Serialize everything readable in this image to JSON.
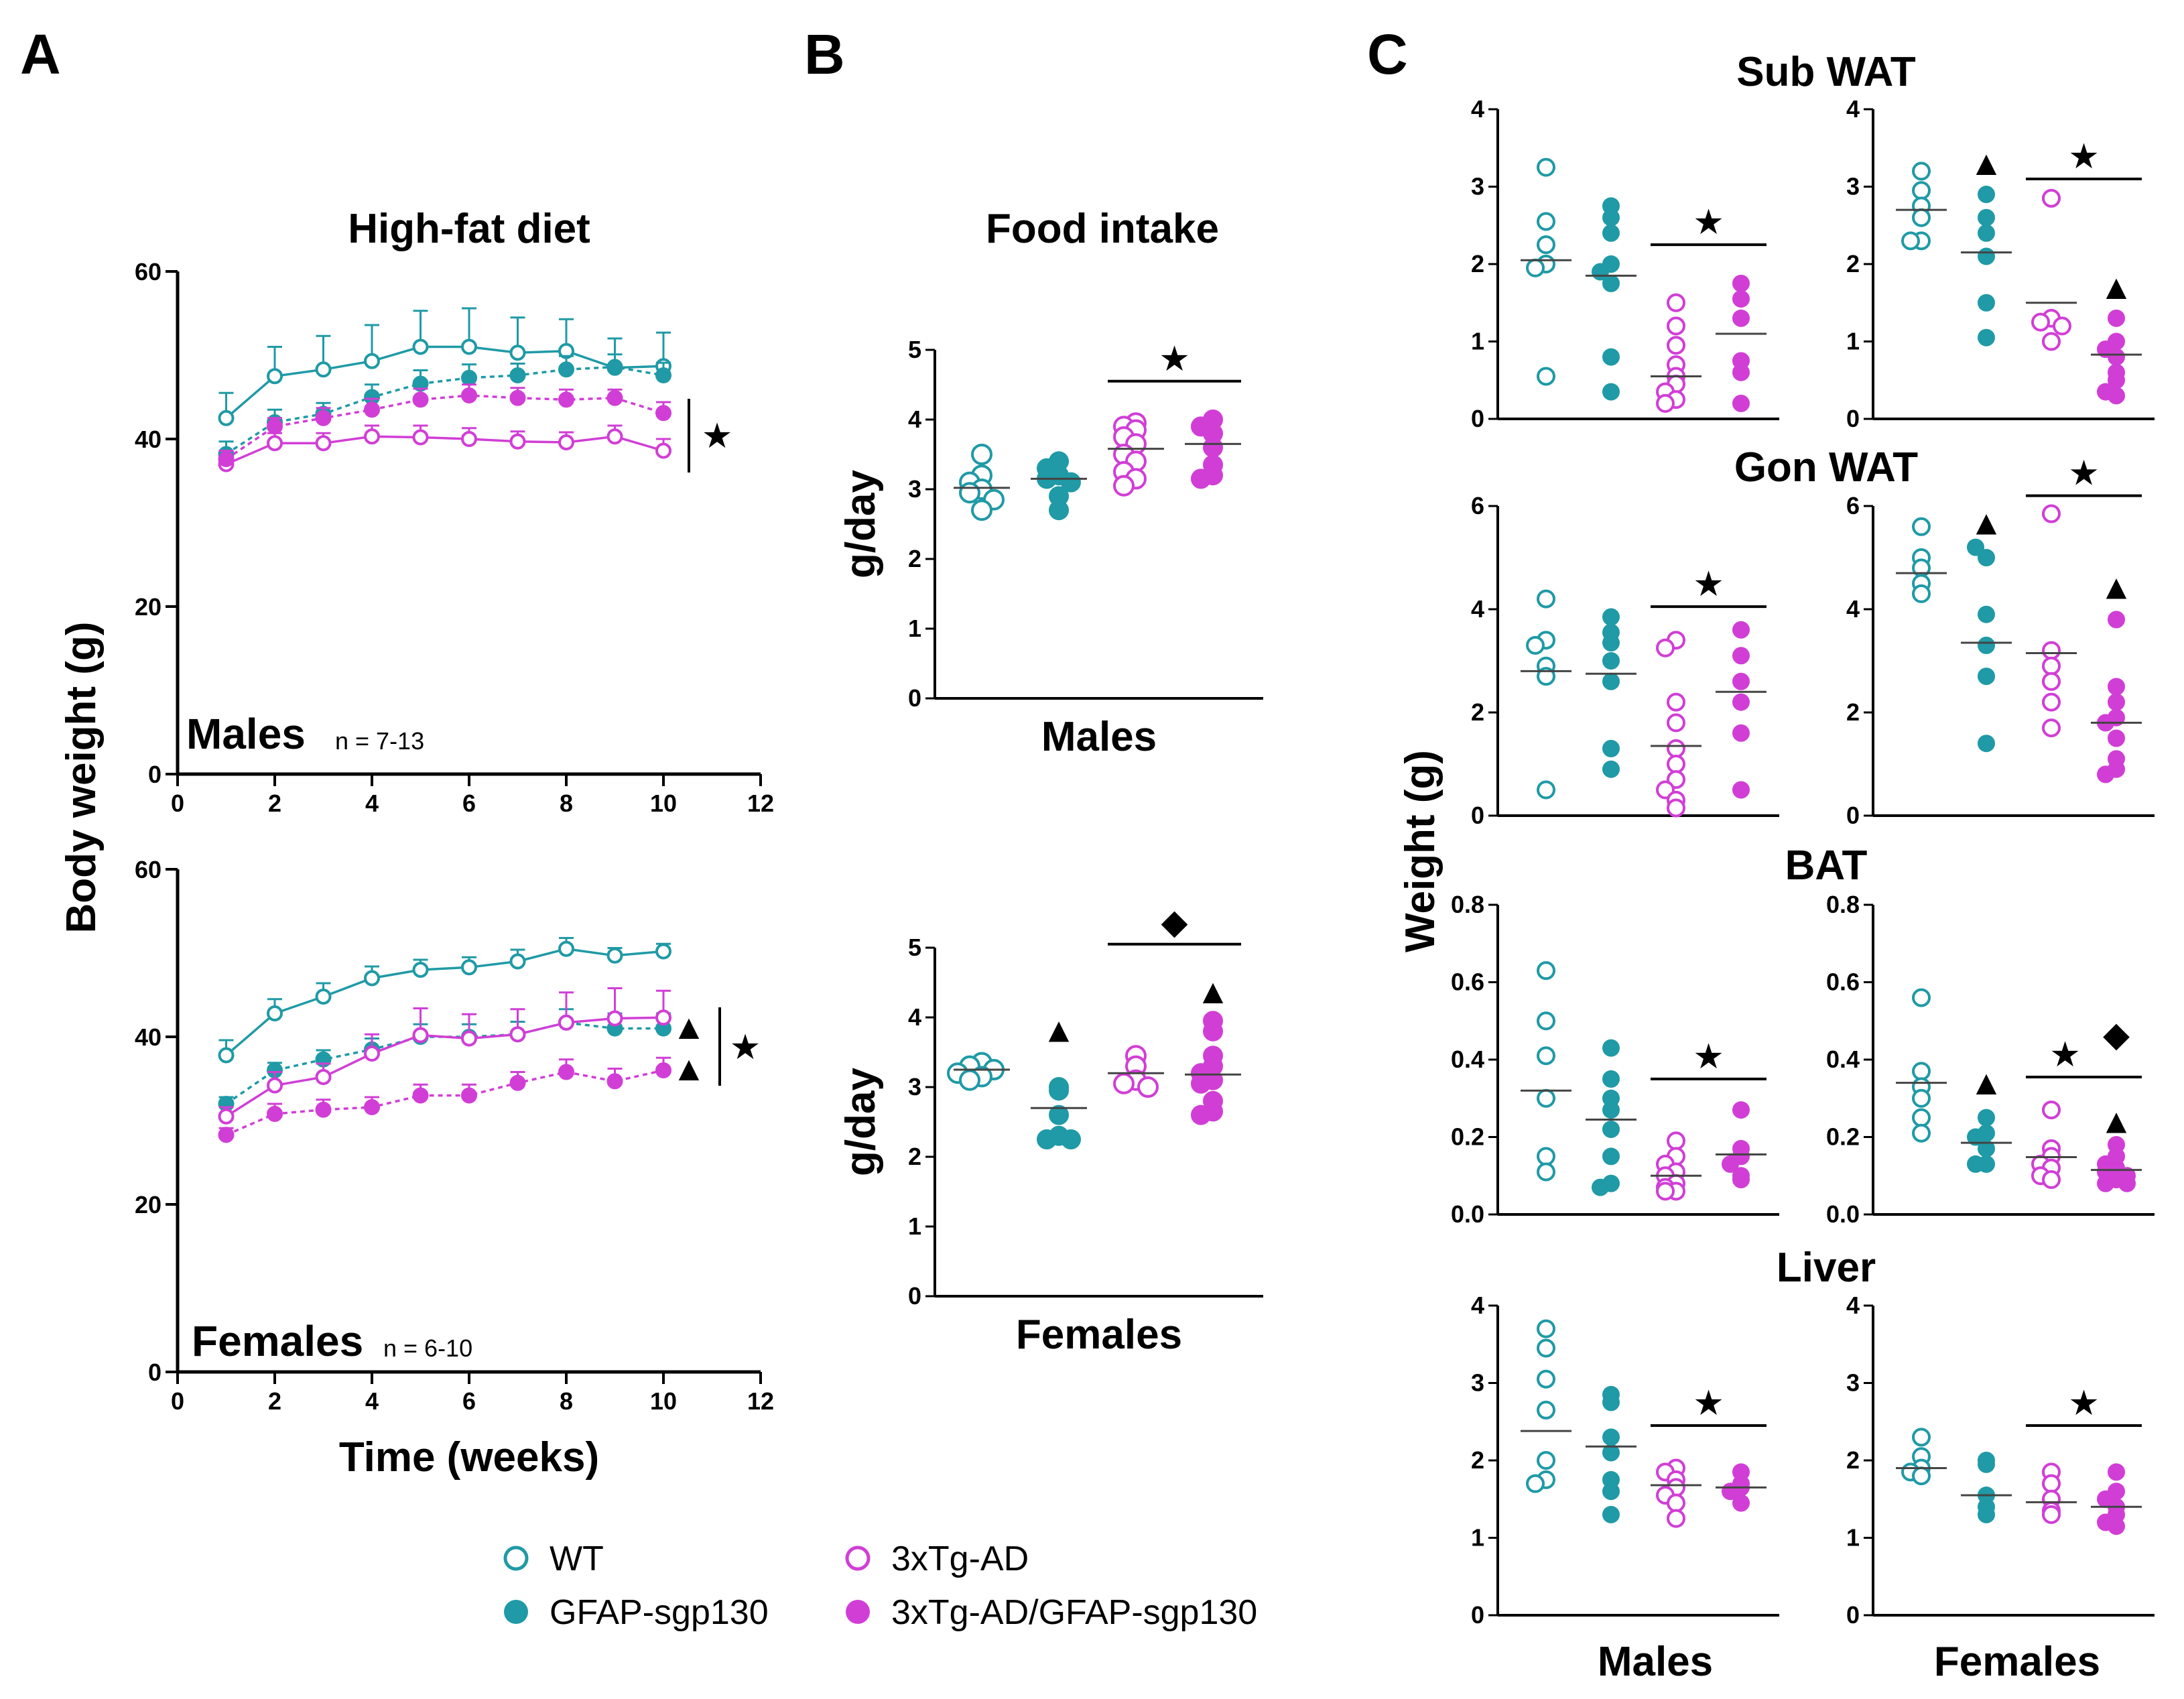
{
  "colors": {
    "teal": "#1f9aa6",
    "magenta": "#d13ed6",
    "black": "#000000"
  },
  "panel_letters": {
    "a": "A",
    "b": "B",
    "c": "C"
  },
  "legend": [
    {
      "label": "WT",
      "color": "#1f9aa6",
      "filled": false
    },
    {
      "label": "GFAP-sgp130",
      "color": "#1f9aa6",
      "filled": true
    },
    {
      "label": "3xTg-AD",
      "color": "#d13ed6",
      "filled": false
    },
    {
      "label": "3xTg-AD/GFAP-sgp130",
      "color": "#d13ed6",
      "filled": true
    }
  ],
  "chart_data": [
    {
      "id": "A-males",
      "type": "line",
      "title": "High-fat diet",
      "panel_label": "Males",
      "n_label": "n = 7-13",
      "xlabel": "Time (weeks)",
      "ylabel": "Body weight (g)",
      "xlim": [
        0,
        12
      ],
      "ylim": [
        0,
        60
      ],
      "xticks": [
        0,
        2,
        4,
        6,
        8,
        10,
        12
      ],
      "yticks": [
        0,
        20,
        40,
        60
      ],
      "x": [
        1,
        2,
        3,
        4,
        5,
        6,
        7,
        8,
        9,
        10
      ],
      "series": [
        {
          "name": "WT",
          "values": [
            42.5,
            47.5,
            48.3,
            49.3,
            51,
            51,
            50.3,
            50.5,
            48.5,
            48.7
          ],
          "err": [
            3,
            3.5,
            4,
            4.3,
            4.3,
            4.6,
            4.2,
            3.8,
            3.5,
            4
          ]
        },
        {
          "name": "GFAP-sgp130",
          "values": [
            38.2,
            42,
            43,
            45,
            46.6,
            47.3,
            47.6,
            48.3,
            48.6,
            47.6
          ],
          "err": [
            1.5,
            1.5,
            1.3,
            1.5,
            1.6,
            1.6,
            1.4,
            1.6,
            1.5,
            1.5
          ]
        },
        {
          "name": "3xTg-AD",
          "values": [
            37,
            39.5,
            39.5,
            40.3,
            40.2,
            40,
            39.7,
            39.6,
            40.3,
            38.6
          ],
          "err": [
            1,
            1.2,
            1.2,
            1.3,
            1.4,
            1.3,
            1.2,
            1.2,
            1.3,
            1.4
          ]
        },
        {
          "name": "3xTg-AD/GFAP-sgp130",
          "values": [
            37.6,
            41.5,
            42.5,
            43.5,
            44.7,
            45.2,
            44.9,
            44.7,
            44.9,
            43.1
          ],
          "err": [
            1,
            1,
            1.2,
            1.3,
            1.3,
            1.3,
            1.2,
            1.2,
            1,
            1.3
          ]
        }
      ],
      "markers": [
        "★"
      ]
    },
    {
      "id": "A-females",
      "type": "line",
      "title": "",
      "panel_label": "Females",
      "n_label": "n = 6-10",
      "xlabel": "Time (weeks)",
      "ylabel": "Body weight (g)",
      "xlim": [
        0,
        12
      ],
      "ylim": [
        0,
        60
      ],
      "xticks": [
        0,
        2,
        4,
        6,
        8,
        10,
        12
      ],
      "yticks": [
        0,
        20,
        40,
        60
      ],
      "x": [
        1,
        2,
        3,
        4,
        5,
        6,
        7,
        8,
        9,
        10
      ],
      "series": [
        {
          "name": "WT",
          "values": [
            37.8,
            42.8,
            44.8,
            47,
            48,
            48.3,
            49,
            50.5,
            49.7,
            50.2
          ],
          "err": [
            1.8,
            1.7,
            1.6,
            1.4,
            1.2,
            1.2,
            1.4,
            1.3,
            0.9,
            0.9
          ]
        },
        {
          "name": "GFAP-sgp130",
          "values": [
            32,
            36,
            37.3,
            38.5,
            40,
            40,
            40.3,
            41.7,
            41,
            41
          ],
          "err": [
            0.8,
            0.9,
            1.1,
            1.3,
            1.5,
            1.5,
            1.5,
            1.6,
            1.8,
            1.8
          ]
        },
        {
          "name": "3xTg-AD",
          "values": [
            30.5,
            34.2,
            35.2,
            38,
            40.2,
            39.8,
            40.3,
            41.7,
            42.2,
            42.3
          ],
          "err": [
            1.1,
            1.6,
            1.6,
            2.3,
            3.2,
            2.9,
            3,
            3.6,
            3.6,
            3.2
          ]
        },
        {
          "name": "3xTg-AD/GFAP-sgp130",
          "values": [
            28.3,
            30.8,
            31.3,
            31.6,
            33,
            33,
            34.5,
            35.8,
            34.7,
            36
          ],
          "err": [
            0.8,
            1.2,
            1.2,
            1.2,
            1.3,
            1.3,
            1.3,
            1.5,
            1.5,
            1.5
          ]
        }
      ],
      "markers": [
        "▲",
        "▲",
        "★"
      ]
    },
    {
      "id": "B-males",
      "type": "scatter",
      "title": "Food intake",
      "xlabel": "Males",
      "ylabel": "g/day",
      "ylim": [
        0,
        5
      ],
      "yticks": [
        0,
        1,
        2,
        3,
        4,
        5
      ],
      "groups": [
        {
          "name": "WT",
          "values": [
            3.5,
            3.2,
            3.1,
            3.0,
            2.95,
            2.85,
            2.7
          ],
          "mean": 3.02
        },
        {
          "name": "GFAP-sgp130",
          "values": [
            3.4,
            3.3,
            3.2,
            3.15,
            3.1,
            2.9,
            2.7
          ],
          "mean": 3.15
        },
        {
          "name": "3xTg-AD",
          "values": [
            3.95,
            3.9,
            3.85,
            3.75,
            3.65,
            3.5,
            3.4,
            3.25,
            3.15,
            3.05
          ],
          "mean": 3.58
        },
        {
          "name": "3xTg-AD/GFAP-sgp130",
          "values": [
            4.0,
            3.9,
            3.8,
            3.6,
            3.35,
            3.2,
            3.15
          ],
          "mean": 3.65
        }
      ],
      "markers": [
        "★"
      ]
    },
    {
      "id": "B-females",
      "type": "scatter",
      "title": "",
      "xlabel": "Females",
      "ylabel": "g/day",
      "ylim": [
        0,
        5
      ],
      "yticks": [
        0,
        1,
        2,
        3,
        4,
        5
      ],
      "groups": [
        {
          "name": "WT",
          "values": [
            3.35,
            3.3,
            3.25,
            3.2,
            3.15,
            3.1
          ],
          "mean": 3.25
        },
        {
          "name": "GFAP-sgp130",
          "values": [
            3.0,
            2.95,
            2.6,
            2.3,
            2.25,
            2.25
          ],
          "mean": 2.7
        },
        {
          "name": "3xTg-AD",
          "values": [
            3.45,
            3.3,
            3.1,
            3.05,
            3.0
          ],
          "mean": 3.2
        },
        {
          "name": "3xTg-AD/GFAP-sgp130",
          "values": [
            3.95,
            3.8,
            3.45,
            3.3,
            3.2,
            3.1,
            3.05,
            2.8,
            2.65,
            2.6
          ],
          "mean": 3.18
        }
      ],
      "markers": [
        "▲",
        "◆",
        "▲"
      ]
    },
    {
      "id": "C-subwat-males",
      "type": "scatter",
      "title": "Sub WAT",
      "xlabel": "Males",
      "ylabel": "Weight (g)",
      "ylim": [
        0,
        4
      ],
      "yticks": [
        0,
        1,
        2,
        3,
        4
      ],
      "groups": [
        {
          "name": "WT",
          "values": [
            3.25,
            2.55,
            2.25,
            2.0,
            1.95,
            0.55
          ],
          "mean": 2.05
        },
        {
          "name": "GFAP-sgp130",
          "values": [
            2.75,
            2.6,
            2.4,
            2.0,
            1.9,
            1.75,
            0.8,
            0.35
          ],
          "mean": 1.85
        },
        {
          "name": "3xTg-AD",
          "values": [
            1.5,
            1.2,
            0.95,
            0.7,
            0.55,
            0.45,
            0.35,
            0.25,
            0.2
          ],
          "mean": 0.55
        },
        {
          "name": "3xTg-AD/GFAP-sgp130",
          "values": [
            1.75,
            1.55,
            1.3,
            0.75,
            0.6,
            0.2
          ],
          "mean": 1.1
        }
      ],
      "markers": [
        "★"
      ]
    },
    {
      "id": "C-subwat-females",
      "type": "scatter",
      "title": "",
      "xlabel": "Females",
      "ylabel": "",
      "ylim": [
        0,
        4
      ],
      "yticks": [
        0,
        1,
        2,
        3,
        4
      ],
      "groups": [
        {
          "name": "WT",
          "values": [
            3.2,
            2.95,
            2.75,
            2.6,
            2.3,
            2.3
          ],
          "mean": 2.7
        },
        {
          "name": "GFAP-sgp130",
          "values": [
            2.9,
            2.6,
            2.4,
            2.1,
            1.5,
            1.05
          ],
          "mean": 2.15
        },
        {
          "name": "3xTg-AD",
          "values": [
            2.85,
            1.3,
            1.25,
            1.2,
            1.0
          ],
          "mean": 1.5
        },
        {
          "name": "3xTg-AD/GFAP-sgp130",
          "values": [
            1.3,
            1.0,
            0.9,
            0.8,
            0.6,
            0.5,
            0.35,
            0.3
          ],
          "mean": 0.83
        }
      ],
      "markers": [
        "▲",
        "★",
        "▲"
      ]
    },
    {
      "id": "C-gonwat-males",
      "type": "scatter",
      "title": "Gon WAT",
      "xlabel": "Males",
      "ylabel": "Weight (g)",
      "ylim": [
        0,
        6
      ],
      "yticks": [
        0,
        2,
        4,
        6
      ],
      "groups": [
        {
          "name": "WT",
          "values": [
            4.2,
            3.4,
            3.3,
            2.9,
            2.7,
            0.5
          ],
          "mean": 2.8
        },
        {
          "name": "GFAP-sgp130",
          "values": [
            3.85,
            3.55,
            3.35,
            3.0,
            2.6,
            1.3,
            0.9
          ],
          "mean": 2.75
        },
        {
          "name": "3xTg-AD",
          "values": [
            3.4,
            3.25,
            2.2,
            1.8,
            1.3,
            1.0,
            0.7,
            0.5,
            0.3,
            0.15
          ],
          "mean": 1.35
        },
        {
          "name": "3xTg-AD/GFAP-sgp130",
          "values": [
            3.6,
            3.1,
            2.6,
            2.2,
            1.6,
            0.5
          ],
          "mean": 2.4
        }
      ],
      "markers": [
        "★"
      ]
    },
    {
      "id": "C-gonwat-females",
      "type": "scatter",
      "title": "",
      "xlabel": "Females",
      "ylabel": "",
      "ylim": [
        0,
        6
      ],
      "yticks": [
        0,
        2,
        4,
        6
      ],
      "groups": [
        {
          "name": "WT",
          "values": [
            5.6,
            5.0,
            4.8,
            4.5,
            4.3
          ],
          "mean": 4.7
        },
        {
          "name": "GFAP-sgp130",
          "values": [
            5.0,
            5.2,
            3.9,
            3.3,
            2.7,
            1.4
          ],
          "mean": 3.35
        },
        {
          "name": "3xTg-AD",
          "values": [
            5.85,
            3.2,
            2.9,
            2.6,
            2.2,
            1.7
          ],
          "mean": 3.15
        },
        {
          "name": "3xTg-AD/GFAP-sgp130",
          "values": [
            3.8,
            2.5,
            2.2,
            1.9,
            1.8,
            1.5,
            1.1,
            0.9,
            0.8
          ],
          "mean": 1.8
        }
      ],
      "markers": [
        "▲",
        "★",
        "▲"
      ]
    },
    {
      "id": "C-bat-males",
      "type": "scatter",
      "title": "BAT",
      "xlabel": "Males",
      "ylabel": "Weight (g)",
      "ylim": [
        0,
        0.8
      ],
      "yticks": [
        0.0,
        0.2,
        0.4,
        0.6,
        0.8
      ],
      "groups": [
        {
          "name": "WT",
          "values": [
            0.63,
            0.5,
            0.41,
            0.3,
            0.15,
            0.11
          ],
          "mean": 0.32
        },
        {
          "name": "GFAP-sgp130",
          "values": [
            0.43,
            0.35,
            0.3,
            0.27,
            0.22,
            0.15,
            0.08,
            0.07
          ],
          "mean": 0.245
        },
        {
          "name": "3xTg-AD",
          "values": [
            0.19,
            0.15,
            0.13,
            0.11,
            0.1,
            0.08,
            0.07,
            0.06,
            0.06
          ],
          "mean": 0.1
        },
        {
          "name": "3xTg-AD/GFAP-sgp130",
          "values": [
            0.27,
            0.17,
            0.15,
            0.13,
            0.1,
            0.09
          ],
          "mean": 0.155
        }
      ],
      "markers": [
        "★"
      ]
    },
    {
      "id": "C-bat-females",
      "type": "scatter",
      "title": "",
      "xlabel": "Females",
      "ylabel": "",
      "ylim": [
        0,
        0.8
      ],
      "yticks": [
        0.0,
        0.2,
        0.4,
        0.6,
        0.8
      ],
      "groups": [
        {
          "name": "WT",
          "values": [
            0.56,
            0.37,
            0.33,
            0.3,
            0.25,
            0.21
          ],
          "mean": 0.34
        },
        {
          "name": "GFAP-sgp130",
          "values": [
            0.25,
            0.21,
            0.2,
            0.17,
            0.13,
            0.13
          ],
          "mean": 0.185
        },
        {
          "name": "3xTg-AD",
          "values": [
            0.27,
            0.17,
            0.15,
            0.13,
            0.12,
            0.1,
            0.09
          ],
          "mean": 0.148
        },
        {
          "name": "3xTg-AD/GFAP-sgp130",
          "values": [
            0.18,
            0.15,
            0.13,
            0.12,
            0.11,
            0.1,
            0.09,
            0.08,
            0.08
          ],
          "mean": 0.115
        }
      ],
      "markers": [
        "▲",
        "★",
        "◆",
        "▲"
      ]
    },
    {
      "id": "C-liver-males",
      "type": "scatter",
      "title": "Liver",
      "xlabel": "Males",
      "ylabel": "Weight (g)",
      "ylim": [
        0,
        4
      ],
      "yticks": [
        0,
        1,
        2,
        3,
        4
      ],
      "groups": [
        {
          "name": "WT",
          "values": [
            3.7,
            3.45,
            3.05,
            2.65,
            2.0,
            1.75,
            1.7
          ],
          "mean": 2.38
        },
        {
          "name": "GFAP-sgp130",
          "values": [
            2.85,
            2.75,
            2.3,
            2.1,
            1.75,
            1.6,
            1.3
          ],
          "mean": 2.18
        },
        {
          "name": "3xTg-AD",
          "values": [
            1.9,
            1.85,
            1.75,
            1.65,
            1.55,
            1.45,
            1.25
          ],
          "mean": 1.68
        },
        {
          "name": "3xTg-AD/GFAP-sgp130",
          "values": [
            1.85,
            1.7,
            1.65,
            1.6,
            1.45
          ],
          "mean": 1.65
        }
      ],
      "markers": [
        "★"
      ]
    },
    {
      "id": "C-liver-females",
      "type": "scatter",
      "title": "",
      "xlabel": "Females",
      "ylabel": "",
      "ylim": [
        0,
        4
      ],
      "yticks": [
        0,
        1,
        2,
        3,
        4
      ],
      "groups": [
        {
          "name": "WT",
          "values": [
            2.3,
            2.05,
            1.9,
            1.85,
            1.8
          ],
          "mean": 1.9
        },
        {
          "name": "GFAP-sgp130",
          "values": [
            2.0,
            1.95,
            1.55,
            1.4,
            1.3
          ],
          "mean": 1.55
        },
        {
          "name": "3xTg-AD",
          "values": [
            1.85,
            1.7,
            1.5,
            1.35,
            1.3
          ],
          "mean": 1.46
        },
        {
          "name": "3xTg-AD/GFAP-sgp130",
          "values": [
            1.85,
            1.6,
            1.5,
            1.4,
            1.3,
            1.2,
            1.15
          ],
          "mean": 1.4
        }
      ],
      "markers": [
        "★"
      ]
    }
  ]
}
